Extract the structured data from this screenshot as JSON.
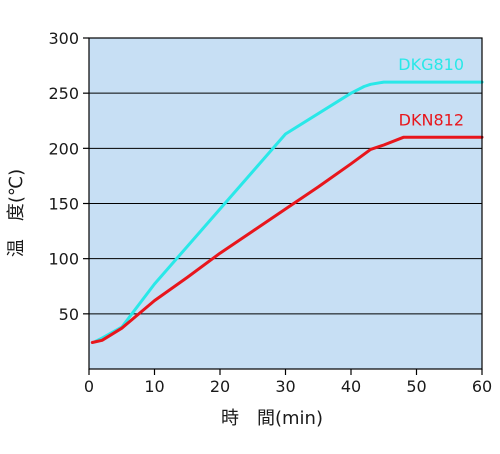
{
  "chart_data": {
    "type": "line",
    "xlabel": "時　間(min)",
    "ylabel": "温　度(℃)",
    "xlim": [
      0,
      60
    ],
    "ylim": [
      0,
      300
    ],
    "x_ticks": [
      0,
      10,
      20,
      30,
      40,
      50,
      60
    ],
    "y_ticks": [
      50,
      100,
      150,
      200,
      250,
      300
    ],
    "grid": "horizontal",
    "legend": "inline-labels",
    "background_color": "#c7dff4",
    "series": [
      {
        "name": "DKG810",
        "color": "#29e8e8",
        "x": [
          1,
          2,
          5,
          10,
          20,
          30,
          40,
          42,
          43,
          45,
          50,
          60
        ],
        "y": [
          25,
          28,
          38,
          77,
          145,
          213,
          250,
          256,
          258,
          260,
          260,
          260
        ]
      },
      {
        "name": "DKN812",
        "color": "#e8161c",
        "x": [
          0.5,
          2,
          5,
          10,
          15,
          20,
          25,
          30,
          35,
          40,
          43,
          45,
          48,
          50,
          60
        ],
        "y": [
          24,
          26,
          37,
          62,
          83,
          105,
          125,
          145,
          165,
          186,
          199,
          203,
          210,
          210,
          210
        ]
      }
    ]
  }
}
